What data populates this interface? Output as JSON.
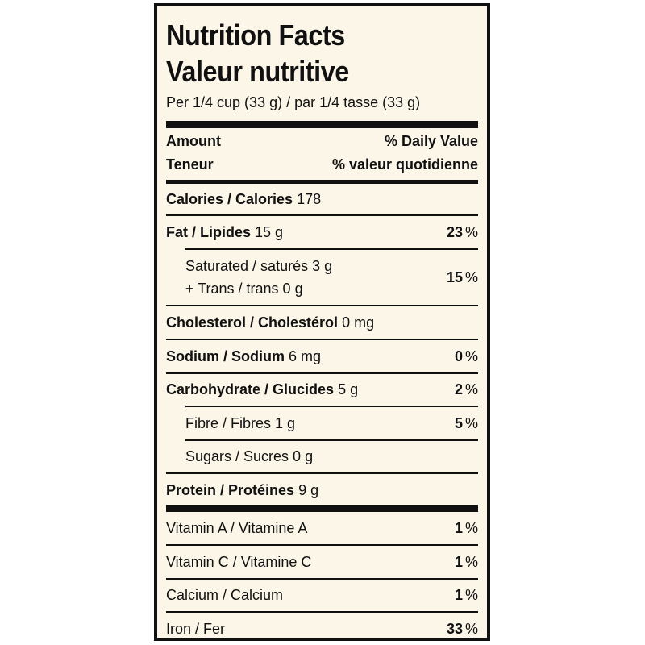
{
  "title_en": "Nutrition Facts",
  "title_fr": "Valeur nutritive",
  "serving": "Per 1/4 cup (33 g) / par 1/4 tasse (33 g)",
  "header": {
    "amount": "Amount",
    "teneur": "Teneur",
    "daily_value": "% Daily Value",
    "valeur_quotidienne": "% valeur quotidienne"
  },
  "rows": {
    "calories": {
      "label": "Calories / Calories",
      "amount": "178"
    },
    "fat": {
      "label": "Fat / Lipides",
      "amount": "15 g",
      "dv": "23",
      "pct": "%"
    },
    "saturated": {
      "line1": "Saturated / saturés 3 g",
      "line2": "+ Trans / trans 0 g",
      "dv": "15",
      "pct": "%"
    },
    "cholesterol": {
      "label": "Cholesterol / Cholestérol",
      "amount": "0 mg"
    },
    "sodium": {
      "label": "Sodium / Sodium",
      "amount": "6 mg",
      "dv": "0",
      "pct": "%"
    },
    "carbohydrate": {
      "label": "Carbohydrate / Glucides",
      "amount": "5 g",
      "dv": "2",
      "pct": "%"
    },
    "fibre": {
      "label": "Fibre / Fibres 1 g",
      "dv": "5",
      "pct": "%"
    },
    "sugars": {
      "label": "Sugars / Sucres 0 g"
    },
    "protein": {
      "label": "Protein / Protéines",
      "amount": "9 g"
    },
    "vitamin_a": {
      "label": "Vitamin A / Vitamine A",
      "dv": "1",
      "pct": "%"
    },
    "vitamin_c": {
      "label": "Vitamin C / Vitamine C",
      "dv": "1",
      "pct": "%"
    },
    "calcium": {
      "label": "Calcium / Calcium",
      "dv": "1",
      "pct": "%"
    },
    "iron": {
      "label": "Iron / Fer",
      "dv": "33",
      "pct": "%"
    }
  }
}
